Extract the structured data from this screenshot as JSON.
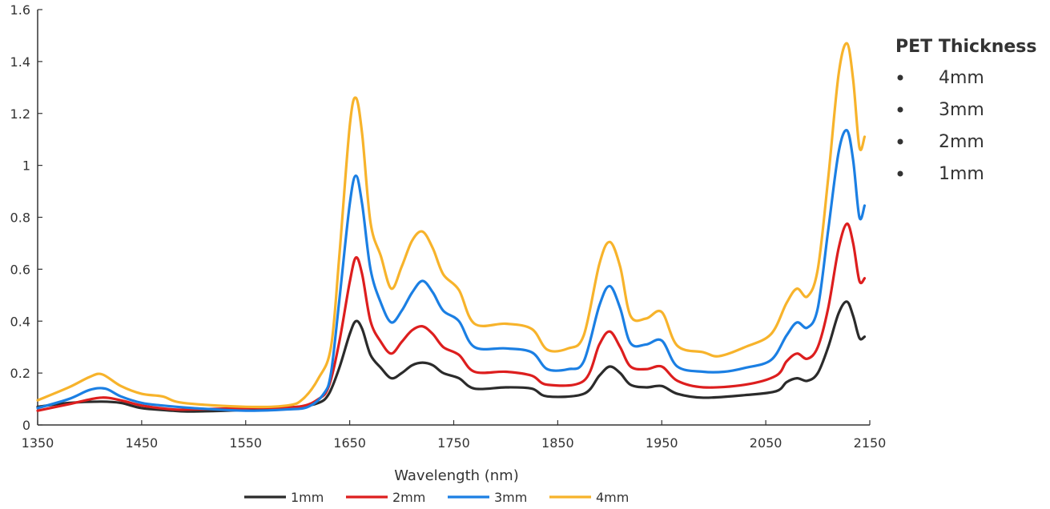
{
  "chart_data": {
    "type": "line",
    "title": "",
    "xlabel": "Wavelength (nm)",
    "ylabel": "",
    "xlim": [
      1350,
      2150
    ],
    "ylim": [
      0,
      1.6
    ],
    "xticks": [
      "1350",
      "1450",
      "1550",
      "1650",
      "1750",
      "1850",
      "1950",
      "2050",
      "2150"
    ],
    "yticks": [
      "0",
      "0.2",
      "0.4",
      "0.6",
      "0.8",
      "1",
      "1.2",
      "1.4",
      "1.6"
    ],
    "grid": false,
    "legend_right": {
      "title": "PET Thickness",
      "entries": [
        "4mm",
        "3mm",
        "2mm",
        "1mm"
      ]
    },
    "series": [
      {
        "name": "1mm",
        "color": "#2b2b2b",
        "points": [
          [
            1350,
            0.07
          ],
          [
            1380,
            0.085
          ],
          [
            1410,
            0.09
          ],
          [
            1430,
            0.085
          ],
          [
            1450,
            0.065
          ],
          [
            1480,
            0.055
          ],
          [
            1500,
            0.052
          ],
          [
            1550,
            0.058
          ],
          [
            1600,
            0.07
          ],
          [
            1620,
            0.085
          ],
          [
            1630,
            0.12
          ],
          [
            1640,
            0.22
          ],
          [
            1650,
            0.35
          ],
          [
            1656,
            0.4
          ],
          [
            1662,
            0.37
          ],
          [
            1670,
            0.27
          ],
          [
            1680,
            0.22
          ],
          [
            1690,
            0.18
          ],
          [
            1700,
            0.2
          ],
          [
            1710,
            0.23
          ],
          [
            1720,
            0.24
          ],
          [
            1730,
            0.23
          ],
          [
            1740,
            0.2
          ],
          [
            1755,
            0.18
          ],
          [
            1770,
            0.14
          ],
          [
            1800,
            0.145
          ],
          [
            1825,
            0.14
          ],
          [
            1840,
            0.11
          ],
          [
            1875,
            0.12
          ],
          [
            1890,
            0.19
          ],
          [
            1900,
            0.225
          ],
          [
            1910,
            0.2
          ],
          [
            1920,
            0.155
          ],
          [
            1935,
            0.145
          ],
          [
            1950,
            0.15
          ],
          [
            1965,
            0.12
          ],
          [
            1990,
            0.105
          ],
          [
            2030,
            0.115
          ],
          [
            2060,
            0.13
          ],
          [
            2070,
            0.165
          ],
          [
            2080,
            0.18
          ],
          [
            2090,
            0.17
          ],
          [
            2100,
            0.2
          ],
          [
            2110,
            0.3
          ],
          [
            2120,
            0.43
          ],
          [
            2128,
            0.475
          ],
          [
            2134,
            0.42
          ],
          [
            2140,
            0.335
          ],
          [
            2145,
            0.34
          ]
        ]
      },
      {
        "name": "2mm",
        "color": "#dd1e1e",
        "points": [
          [
            1350,
            0.055
          ],
          [
            1380,
            0.08
          ],
          [
            1410,
            0.105
          ],
          [
            1430,
            0.095
          ],
          [
            1450,
            0.075
          ],
          [
            1480,
            0.06
          ],
          [
            1500,
            0.06
          ],
          [
            1550,
            0.065
          ],
          [
            1600,
            0.07
          ],
          [
            1620,
            0.1
          ],
          [
            1630,
            0.15
          ],
          [
            1640,
            0.32
          ],
          [
            1650,
            0.55
          ],
          [
            1656,
            0.645
          ],
          [
            1662,
            0.58
          ],
          [
            1670,
            0.4
          ],
          [
            1680,
            0.32
          ],
          [
            1690,
            0.275
          ],
          [
            1700,
            0.32
          ],
          [
            1710,
            0.365
          ],
          [
            1720,
            0.38
          ],
          [
            1730,
            0.35
          ],
          [
            1740,
            0.3
          ],
          [
            1755,
            0.27
          ],
          [
            1770,
            0.205
          ],
          [
            1800,
            0.205
          ],
          [
            1825,
            0.19
          ],
          [
            1840,
            0.155
          ],
          [
            1875,
            0.17
          ],
          [
            1890,
            0.31
          ],
          [
            1900,
            0.36
          ],
          [
            1910,
            0.3
          ],
          [
            1920,
            0.225
          ],
          [
            1935,
            0.215
          ],
          [
            1950,
            0.225
          ],
          [
            1965,
            0.17
          ],
          [
            1990,
            0.145
          ],
          [
            2030,
            0.155
          ],
          [
            2060,
            0.19
          ],
          [
            2070,
            0.245
          ],
          [
            2080,
            0.275
          ],
          [
            2090,
            0.255
          ],
          [
            2100,
            0.3
          ],
          [
            2110,
            0.45
          ],
          [
            2120,
            0.68
          ],
          [
            2128,
            0.775
          ],
          [
            2134,
            0.7
          ],
          [
            2140,
            0.555
          ],
          [
            2145,
            0.565
          ]
        ]
      },
      {
        "name": "3mm",
        "color": "#1b7fe3",
        "points": [
          [
            1350,
            0.065
          ],
          [
            1380,
            0.1
          ],
          [
            1400,
            0.135
          ],
          [
            1415,
            0.14
          ],
          [
            1430,
            0.11
          ],
          [
            1450,
            0.085
          ],
          [
            1470,
            0.075
          ],
          [
            1500,
            0.065
          ],
          [
            1550,
            0.055
          ],
          [
            1590,
            0.06
          ],
          [
            1610,
            0.07
          ],
          [
            1625,
            0.12
          ],
          [
            1632,
            0.2
          ],
          [
            1640,
            0.48
          ],
          [
            1650,
            0.85
          ],
          [
            1656,
            0.96
          ],
          [
            1662,
            0.85
          ],
          [
            1670,
            0.6
          ],
          [
            1680,
            0.47
          ],
          [
            1690,
            0.395
          ],
          [
            1700,
            0.44
          ],
          [
            1710,
            0.51
          ],
          [
            1720,
            0.555
          ],
          [
            1730,
            0.51
          ],
          [
            1740,
            0.44
          ],
          [
            1755,
            0.4
          ],
          [
            1770,
            0.3
          ],
          [
            1800,
            0.295
          ],
          [
            1825,
            0.28
          ],
          [
            1840,
            0.215
          ],
          [
            1860,
            0.215
          ],
          [
            1875,
            0.245
          ],
          [
            1890,
            0.46
          ],
          [
            1900,
            0.535
          ],
          [
            1910,
            0.45
          ],
          [
            1920,
            0.315
          ],
          [
            1935,
            0.31
          ],
          [
            1950,
            0.325
          ],
          [
            1965,
            0.225
          ],
          [
            1990,
            0.205
          ],
          [
            2010,
            0.205
          ],
          [
            2030,
            0.22
          ],
          [
            2055,
            0.25
          ],
          [
            2070,
            0.345
          ],
          [
            2080,
            0.395
          ],
          [
            2090,
            0.375
          ],
          [
            2100,
            0.45
          ],
          [
            2110,
            0.75
          ],
          [
            2120,
            1.05
          ],
          [
            2128,
            1.135
          ],
          [
            2134,
            1.02
          ],
          [
            2140,
            0.8
          ],
          [
            2145,
            0.845
          ]
        ]
      },
      {
        "name": "4mm",
        "color": "#f7b32b",
        "points": [
          [
            1350,
            0.095
          ],
          [
            1380,
            0.145
          ],
          [
            1400,
            0.185
          ],
          [
            1412,
            0.195
          ],
          [
            1430,
            0.15
          ],
          [
            1450,
            0.12
          ],
          [
            1470,
            0.11
          ],
          [
            1490,
            0.085
          ],
          [
            1550,
            0.07
          ],
          [
            1590,
            0.075
          ],
          [
            1605,
            0.1
          ],
          [
            1620,
            0.18
          ],
          [
            1632,
            0.3
          ],
          [
            1640,
            0.65
          ],
          [
            1650,
            1.15
          ],
          [
            1656,
            1.26
          ],
          [
            1662,
            1.12
          ],
          [
            1670,
            0.78
          ],
          [
            1680,
            0.65
          ],
          [
            1690,
            0.525
          ],
          [
            1700,
            0.61
          ],
          [
            1710,
            0.71
          ],
          [
            1720,
            0.745
          ],
          [
            1730,
            0.68
          ],
          [
            1740,
            0.58
          ],
          [
            1755,
            0.52
          ],
          [
            1770,
            0.39
          ],
          [
            1800,
            0.39
          ],
          [
            1825,
            0.37
          ],
          [
            1840,
            0.29
          ],
          [
            1860,
            0.295
          ],
          [
            1875,
            0.345
          ],
          [
            1890,
            0.62
          ],
          [
            1900,
            0.705
          ],
          [
            1910,
            0.61
          ],
          [
            1920,
            0.42
          ],
          [
            1935,
            0.41
          ],
          [
            1950,
            0.435
          ],
          [
            1965,
            0.305
          ],
          [
            1990,
            0.28
          ],
          [
            2005,
            0.265
          ],
          [
            2030,
            0.3
          ],
          [
            2055,
            0.35
          ],
          [
            2070,
            0.47
          ],
          [
            2080,
            0.525
          ],
          [
            2090,
            0.495
          ],
          [
            2100,
            0.6
          ],
          [
            2110,
            0.95
          ],
          [
            2120,
            1.35
          ],
          [
            2128,
            1.47
          ],
          [
            2134,
            1.33
          ],
          [
            2140,
            1.07
          ],
          [
            2145,
            1.11
          ]
        ]
      }
    ]
  }
}
